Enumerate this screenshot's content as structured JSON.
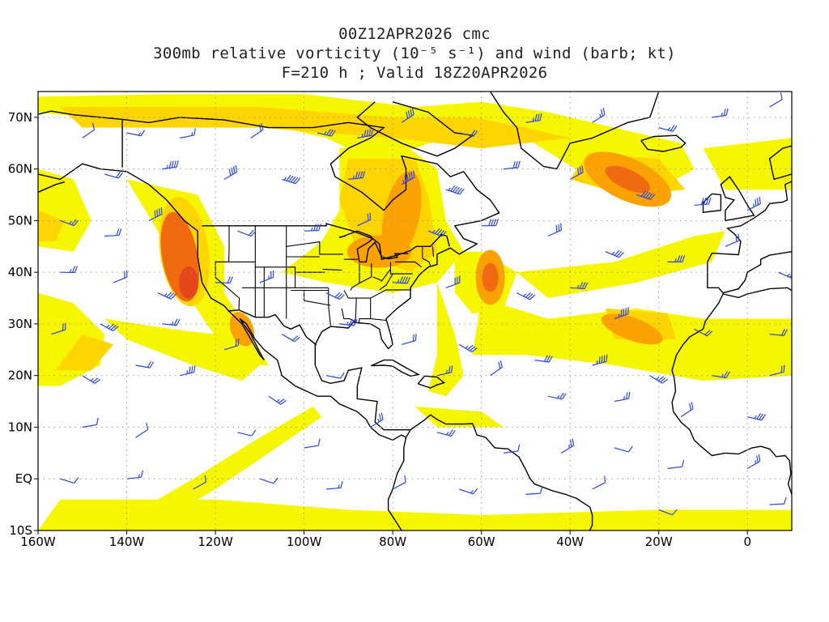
{
  "title": {
    "line1": "00Z12APR2026 cmc",
    "line2": "300mb relative vorticity (10⁻⁵ s⁻¹) and wind (barb; kt)",
    "line3": "F=210 h ; Valid 18Z20APR2026"
  },
  "axes": {
    "lon_labels": [
      "160W",
      "140W",
      "120W",
      "100W",
      "80W",
      "60W",
      "40W",
      "20W",
      "0"
    ],
    "lat_labels": [
      "70N",
      "60N",
      "50N",
      "40N",
      "30N",
      "20N",
      "10N",
      "EQ",
      "10S"
    ],
    "lon_range": [
      -160,
      10
    ],
    "lat_range": [
      -10,
      75
    ]
  },
  "colors": {
    "light_yellow": "#f6f600",
    "yellow": "#ffd500",
    "orange": "#fba200",
    "dark_orange": "#f26a10",
    "red_orange": "#e5461c",
    "coastline": "#000000",
    "wind_barb": "#2a46e8",
    "grid": "#9a9a9a"
  }
}
